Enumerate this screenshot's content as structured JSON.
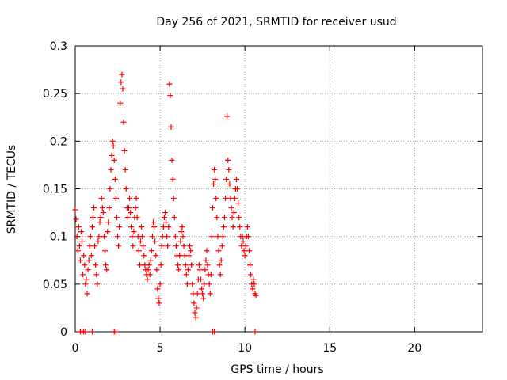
{
  "chart_data": {
    "type": "scatter",
    "title": "Day 256 of 2021, SRMTID for receiver usud",
    "xlabel": "GPS time / hours",
    "ylabel": "SRMTID / TECUs",
    "xlim": [
      0,
      24
    ],
    "ylim": [
      0,
      0.3
    ],
    "xticks": [
      0,
      5,
      10,
      15,
      20
    ],
    "xtick_labels": [
      "0",
      "5",
      "10",
      "15",
      "20"
    ],
    "yticks": [
      0,
      0.05,
      0.1,
      0.15,
      0.2,
      0.25,
      0.3
    ],
    "ytick_labels": [
      "0",
      "0.05",
      "0.1",
      "0.15",
      "0.2",
      "0.25",
      "0.3"
    ],
    "grid": true,
    "marker": "+",
    "color": "#ff0000",
    "series": [
      {
        "name": "SRMTID",
        "points": [
          [
            0.0,
            0.128
          ],
          [
            0.05,
            0.118
          ],
          [
            0.1,
            0.1
          ],
          [
            0.15,
            0.085
          ],
          [
            0.2,
            0.11
          ],
          [
            0.25,
            0.09
          ],
          [
            0.3,
            0.075
          ],
          [
            0.35,
            0.105
          ],
          [
            0.4,
            0.095
          ],
          [
            0.45,
            0.06
          ],
          [
            0.5,
            0.08
          ],
          [
            0.55,
            0.07
          ],
          [
            0.6,
            0.05
          ],
          [
            0.65,
            0.055
          ],
          [
            0.7,
            0.04
          ],
          [
            0.75,
            0.065
          ],
          [
            0.8,
            0.075
          ],
          [
            0.85,
            0.09
          ],
          [
            0.9,
            0.1
          ],
          [
            0.95,
            0.08
          ],
          [
            1.0,
            0.11
          ],
          [
            1.05,
            0.12
          ],
          [
            1.1,
            0.13
          ],
          [
            1.15,
            0.09
          ],
          [
            1.2,
            0.07
          ],
          [
            1.25,
            0.06
          ],
          [
            1.3,
            0.05
          ],
          [
            1.35,
            0.095
          ],
          [
            1.4,
            0.1
          ],
          [
            1.45,
            0.115
          ],
          [
            1.5,
            0.12
          ],
          [
            1.55,
            0.14
          ],
          [
            1.6,
            0.13
          ],
          [
            1.65,
            0.125
          ],
          [
            1.7,
            0.1
          ],
          [
            1.75,
            0.085
          ],
          [
            1.8,
            0.07
          ],
          [
            1.85,
            0.065
          ],
          [
            1.9,
            0.105
          ],
          [
            1.95,
            0.115
          ],
          [
            2.0,
            0.13
          ],
          [
            2.05,
            0.15
          ],
          [
            2.1,
            0.17
          ],
          [
            2.15,
            0.185
          ],
          [
            2.2,
            0.2
          ],
          [
            2.25,
            0.195
          ],
          [
            2.3,
            0.18
          ],
          [
            2.35,
            0.16
          ],
          [
            2.4,
            0.14
          ],
          [
            2.45,
            0.12
          ],
          [
            2.5,
            0.1
          ],
          [
            2.55,
            0.09
          ],
          [
            2.6,
            0.11
          ],
          [
            2.65,
            0.24
          ],
          [
            2.7,
            0.262
          ],
          [
            2.75,
            0.27
          ],
          [
            2.8,
            0.255
          ],
          [
            2.85,
            0.22
          ],
          [
            2.9,
            0.19
          ],
          [
            2.95,
            0.17
          ],
          [
            3.0,
            0.15
          ],
          [
            3.05,
            0.13
          ],
          [
            3.1,
            0.12
          ],
          [
            3.15,
            0.13
          ],
          [
            3.2,
            0.14
          ],
          [
            3.25,
            0.125
          ],
          [
            3.3,
            0.11
          ],
          [
            3.35,
            0.1
          ],
          [
            3.4,
            0.09
          ],
          [
            3.45,
            0.105
          ],
          [
            3.5,
            0.12
          ],
          [
            3.55,
            0.13
          ],
          [
            3.6,
            0.14
          ],
          [
            3.65,
            0.12
          ],
          [
            3.7,
            0.1
          ],
          [
            3.75,
            0.085
          ],
          [
            3.8,
            0.07
          ],
          [
            3.85,
            0.095
          ],
          [
            3.9,
            0.11
          ],
          [
            3.95,
            0.1
          ],
          [
            4.0,
            0.09
          ],
          [
            4.05,
            0.08
          ],
          [
            4.1,
            0.07
          ],
          [
            4.15,
            0.065
          ],
          [
            4.2,
            0.06
          ],
          [
            4.25,
            0.055
          ],
          [
            4.3,
            0.065
          ],
          [
            4.35,
            0.07
          ],
          [
            4.4,
            0.06
          ],
          [
            4.45,
            0.075
          ],
          [
            4.5,
            0.085
          ],
          [
            4.55,
            0.1
          ],
          [
            4.6,
            0.115
          ],
          [
            4.65,
            0.11
          ],
          [
            4.7,
            0.095
          ],
          [
            4.75,
            0.08
          ],
          [
            4.8,
            0.065
          ],
          [
            4.85,
            0.045
          ],
          [
            4.9,
            0.035
          ],
          [
            4.95,
            0.03
          ],
          [
            5.0,
            0.05
          ],
          [
            5.05,
            0.07
          ],
          [
            5.1,
            0.09
          ],
          [
            5.15,
            0.1
          ],
          [
            5.2,
            0.11
          ],
          [
            5.25,
            0.12
          ],
          [
            5.3,
            0.125
          ],
          [
            5.35,
            0.115
          ],
          [
            5.4,
            0.1
          ],
          [
            5.45,
            0.09
          ],
          [
            5.5,
            0.11
          ],
          [
            5.55,
            0.26
          ],
          [
            5.6,
            0.248
          ],
          [
            5.65,
            0.215
          ],
          [
            5.7,
            0.18
          ],
          [
            5.75,
            0.16
          ],
          [
            5.8,
            0.14
          ],
          [
            5.85,
            0.12
          ],
          [
            5.9,
            0.1
          ],
          [
            5.95,
            0.09
          ],
          [
            6.0,
            0.08
          ],
          [
            6.05,
            0.07
          ],
          [
            6.1,
            0.065
          ],
          [
            6.15,
            0.08
          ],
          [
            6.2,
            0.095
          ],
          [
            6.25,
            0.105
          ],
          [
            6.3,
            0.11
          ],
          [
            6.35,
            0.1
          ],
          [
            6.4,
            0.09
          ],
          [
            6.45,
            0.08
          ],
          [
            6.5,
            0.07
          ],
          [
            6.55,
            0.06
          ],
          [
            6.6,
            0.05
          ],
          [
            6.65,
            0.065
          ],
          [
            6.7,
            0.08
          ],
          [
            6.75,
            0.09
          ],
          [
            6.8,
            0.085
          ],
          [
            6.85,
            0.07
          ],
          [
            6.9,
            0.05
          ],
          [
            6.95,
            0.04
          ],
          [
            7.0,
            0.03
          ],
          [
            7.05,
            0.02
          ],
          [
            7.1,
            0.015
          ],
          [
            7.15,
            0.025
          ],
          [
            7.2,
            0.04
          ],
          [
            7.25,
            0.055
          ],
          [
            7.3,
            0.07
          ],
          [
            7.35,
            0.065
          ],
          [
            7.4,
            0.055
          ],
          [
            7.45,
            0.045
          ],
          [
            7.5,
            0.04
          ],
          [
            7.55,
            0.035
          ],
          [
            7.6,
            0.05
          ],
          [
            7.65,
            0.065
          ],
          [
            7.7,
            0.075
          ],
          [
            7.75,
            0.085
          ],
          [
            7.8,
            0.07
          ],
          [
            7.85,
            0.06
          ],
          [
            7.9,
            0.05
          ],
          [
            7.95,
            0.04
          ],
          [
            8.0,
            0.06
          ],
          [
            8.05,
            0.1
          ],
          [
            8.1,
            0.13
          ],
          [
            8.15,
            0.155
          ],
          [
            8.2,
            0.17
          ],
          [
            8.25,
            0.16
          ],
          [
            8.3,
            0.14
          ],
          [
            8.35,
            0.12
          ],
          [
            8.4,
            0.1
          ],
          [
            8.45,
            0.085
          ],
          [
            8.5,
            0.07
          ],
          [
            8.55,
            0.06
          ],
          [
            8.6,
            0.075
          ],
          [
            8.65,
            0.09
          ],
          [
            8.7,
            0.1
          ],
          [
            8.75,
            0.11
          ],
          [
            8.8,
            0.12
          ],
          [
            8.85,
            0.14
          ],
          [
            8.9,
            0.16
          ],
          [
            8.95,
            0.226
          ],
          [
            9.0,
            0.18
          ],
          [
            9.05,
            0.17
          ],
          [
            9.1,
            0.155
          ],
          [
            9.15,
            0.14
          ],
          [
            9.2,
            0.13
          ],
          [
            9.25,
            0.12
          ],
          [
            9.3,
            0.11
          ],
          [
            9.35,
            0.125
          ],
          [
            9.4,
            0.14
          ],
          [
            9.45,
            0.15
          ],
          [
            9.5,
            0.16
          ],
          [
            9.55,
            0.15
          ],
          [
            9.6,
            0.135
          ],
          [
            9.65,
            0.12
          ],
          [
            9.7,
            0.11
          ],
          [
            9.75,
            0.1
          ],
          [
            9.8,
            0.09
          ],
          [
            9.85,
            0.1
          ],
          [
            9.9,
            0.095
          ],
          [
            9.95,
            0.085
          ],
          [
            10.0,
            0.08
          ],
          [
            10.05,
            0.09
          ],
          [
            10.1,
            0.1
          ],
          [
            10.15,
            0.11
          ],
          [
            10.2,
            0.1
          ],
          [
            10.25,
            0.085
          ],
          [
            10.3,
            0.07
          ],
          [
            10.35,
            0.06
          ],
          [
            10.4,
            0.05
          ],
          [
            10.45,
            0.045
          ],
          [
            10.5,
            0.055
          ],
          [
            10.55,
            0.05
          ],
          [
            10.6,
            0.04
          ],
          [
            10.65,
            0.038
          ],
          [
            0.3,
            0.0
          ],
          [
            0.4,
            0.0
          ],
          [
            0.5,
            0.0
          ],
          [
            0.6,
            0.0
          ],
          [
            1.0,
            0.0
          ],
          [
            2.3,
            0.0
          ],
          [
            2.4,
            0.0
          ],
          [
            8.1,
            0.0
          ],
          [
            8.2,
            0.0
          ],
          [
            10.6,
            0.0
          ]
        ]
      }
    ]
  }
}
